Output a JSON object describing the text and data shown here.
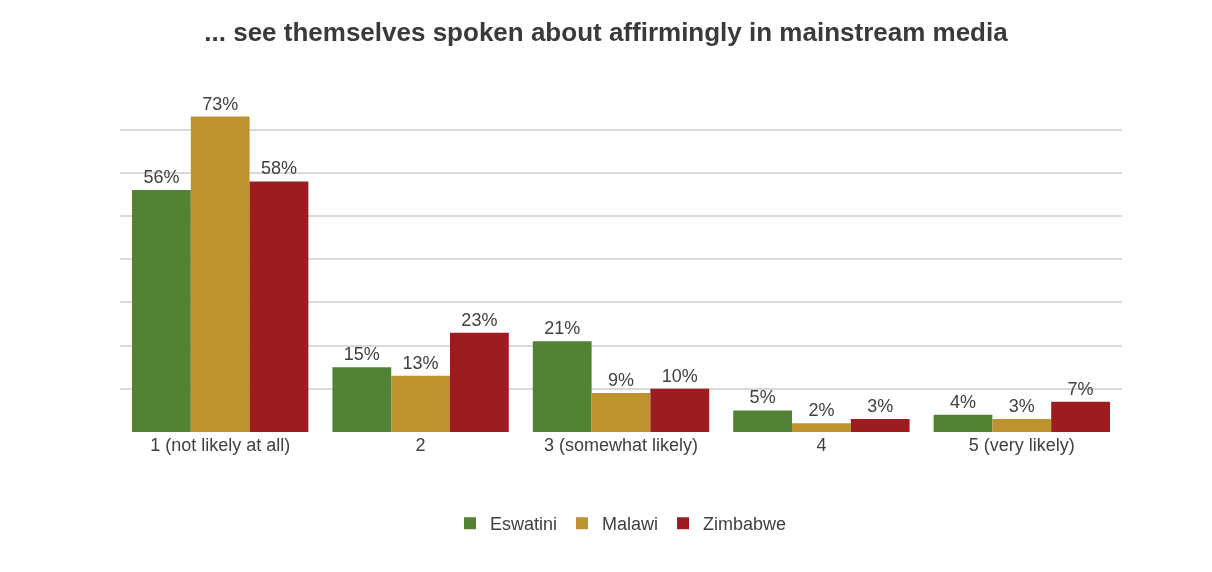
{
  "chart_data": {
    "type": "bar",
    "title": "... see themselves spoken about affirmingly in mainstream media",
    "categories": [
      "1 (not likely at all)",
      "2",
      "3 (somewhat likely)",
      "4",
      "5 (very likely)"
    ],
    "series": [
      {
        "name": "Eswatini",
        "color": "#548235",
        "values": [
          56,
          15,
          21,
          5,
          4
        ],
        "value_labels": [
          "56%",
          "15%",
          "21%",
          "5%",
          "4%"
        ]
      },
      {
        "name": "Malawi",
        "color": "#bf9230",
        "values": [
          73,
          13,
          9,
          2,
          3
        ],
        "value_labels": [
          "73%",
          "13%",
          "9%",
          "2%",
          "3%"
        ]
      },
      {
        "name": "Zimbabwe",
        "color": "#9c1c1f",
        "values": [
          58,
          23,
          10,
          3,
          7
        ],
        "value_labels": [
          "58%",
          "23%",
          "10%",
          "3%",
          "7%"
        ]
      }
    ],
    "grid": "y",
    "legend": "bottom",
    "tick_labels": "x"
  }
}
